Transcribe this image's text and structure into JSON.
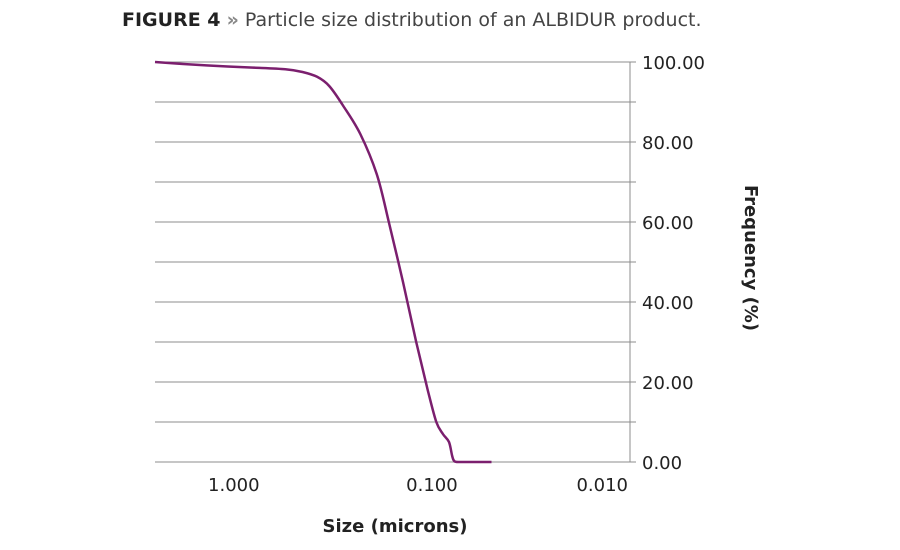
{
  "title": {
    "figure": "FIGURE 4",
    "separator": "»",
    "text": "Particle size distribution of an ALBIDUR product."
  },
  "chart_data": {
    "type": "line",
    "xlabel": "Size (microns)",
    "ylabel": "Frequency (%)",
    "x_scale": "log",
    "x_reversed": true,
    "xlim": [
      2.5,
      0.01
    ],
    "ylim": [
      0,
      100
    ],
    "x_ticks": [
      {
        "value": 1,
        "label": "1.000"
      },
      {
        "value": 0.1,
        "label": "0.100"
      },
      {
        "value": 0.01,
        "label": "0.010"
      }
    ],
    "y_ticks": [
      {
        "value": 0,
        "label": "0.00"
      },
      {
        "value": 20,
        "label": "20.00"
      },
      {
        "value": 40,
        "label": "40.00"
      },
      {
        "value": 60,
        "label": "60.00"
      },
      {
        "value": 80,
        "label": "80.00"
      },
      {
        "value": 100,
        "label": "100.00"
      }
    ],
    "y_axis_position": "right",
    "grid": true,
    "grid_step": 10,
    "series": [
      {
        "color": "#7b1f6e",
        "points": [
          [
            2.5,
            100
          ],
          [
            1.8,
            99.5
          ],
          [
            1.2,
            99
          ],
          [
            0.8,
            98.6
          ],
          [
            0.55,
            98.2
          ],
          [
            0.45,
            97.5
          ],
          [
            0.38,
            96.3
          ],
          [
            0.33,
            94
          ],
          [
            0.28,
            89
          ],
          [
            0.23,
            82
          ],
          [
            0.19,
            72
          ],
          [
            0.165,
            60
          ],
          [
            0.14,
            45
          ],
          [
            0.12,
            30
          ],
          [
            0.105,
            18
          ],
          [
            0.095,
            10
          ],
          [
            0.088,
            7
          ],
          [
            0.082,
            5
          ],
          [
            0.079,
            1.5
          ],
          [
            0.077,
            0.2
          ],
          [
            0.072,
            0
          ],
          [
            0.06,
            0
          ],
          [
            0.05,
            0
          ]
        ]
      }
    ]
  }
}
